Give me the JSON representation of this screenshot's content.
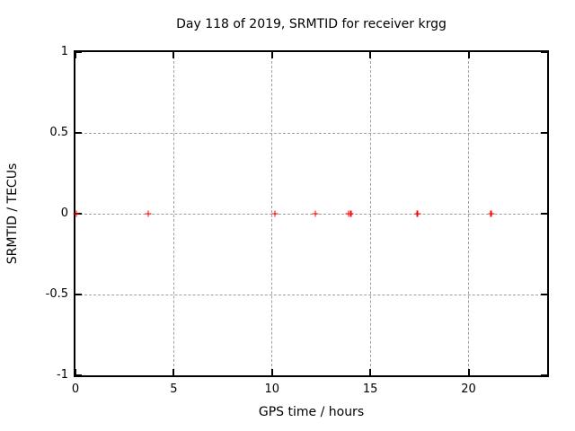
{
  "chart_data": {
    "type": "scatter",
    "title": "Day 118 of 2019, SRMTID for receiver krgg",
    "xlabel": "GPS time / hours",
    "ylabel": "SRMTID / TECUs",
    "xlim": [
      0,
      24
    ],
    "ylim": [
      -1,
      1
    ],
    "xticks": [
      0,
      5,
      10,
      15,
      20
    ],
    "yticks": [
      1,
      0.5,
      0,
      -0.5,
      -1
    ],
    "grid": true,
    "legend_position": "none",
    "colors": {
      "marker": "#ff0000",
      "grid": "#9e9e9e",
      "axis": "#000000",
      "text": "#000000"
    },
    "series": [
      {
        "name": "SRMTID",
        "marker": "plus",
        "color": "#ff0000",
        "points": [
          {
            "x": 0.05,
            "y": 0
          },
          {
            "x": 3.7,
            "y": 0
          },
          {
            "x": 10.15,
            "y": 0
          },
          {
            "x": 12.2,
            "y": 0
          },
          {
            "x": 13.9,
            "y": 0
          },
          {
            "x": 14.0,
            "y": 0
          },
          {
            "x": 17.4,
            "y": 0
          },
          {
            "x": 21.15,
            "y": 0
          }
        ]
      }
    ]
  }
}
